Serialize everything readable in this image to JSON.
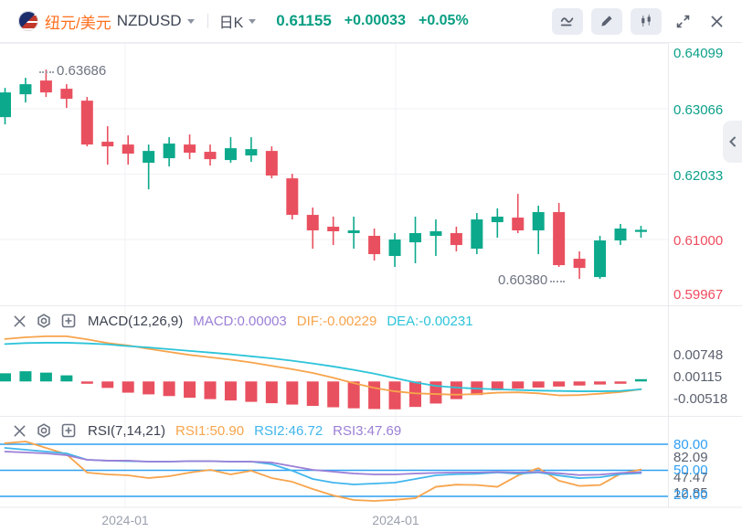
{
  "header": {
    "pair_cn": "纽元/美元",
    "symbol": "NZDUSD",
    "timeframe": "日K",
    "price": "0.61155",
    "change": "+0.00033",
    "change_pct": "+0.05%",
    "icon_names": [
      "line-chart",
      "draw",
      "candlestick",
      "fullscreen",
      "close"
    ]
  },
  "price_pane": {
    "axis": [
      "0.64099",
      "0.63066",
      "0.62033",
      "0.61000",
      "0.59967"
    ],
    "high_annotation": "0.63686",
    "low_annotation": "0.60380",
    "time_axis": [
      "2024-01",
      "2024-01"
    ],
    "collapse_icon": "chevron-left"
  },
  "macd_pane": {
    "tool_icons": [
      "close",
      "settings",
      "add"
    ],
    "title": "MACD(12,26,9)",
    "macd_label": "MACD:0.00003",
    "dif_label": "DIF:-0.00229",
    "dea_label": "DEA:-0.00231",
    "axis": [
      "0.00748",
      "0.00115",
      "-0.00518"
    ]
  },
  "rsi_pane": {
    "tool_icons": [
      "close",
      "settings",
      "add"
    ],
    "title": "RSI(7,14,21)",
    "rsi1_label": "RSI1:50.90",
    "rsi2_label": "RSI2:46.72",
    "rsi3_label": "RSI3:47.69",
    "guide_labels": [
      "80.00",
      "50.00",
      "20.00"
    ],
    "scale_labels": [
      "82.09",
      "47.47",
      "12.85"
    ]
  },
  "colors": {
    "up": "#0ca98c",
    "down": "#e9505f",
    "grid": "#f0f2f5",
    "divider": "#e8eaee",
    "indicator_orange": "#f7a44c",
    "indicator_cyan": "#2cc4d9",
    "indicator_purple": "#9b7fd6",
    "indicator_sky": "#41b6ec",
    "guide_blue": "#2f9ff2"
  },
  "chart_data": {
    "type": "candlestick",
    "title": "NZDUSD 日K",
    "price_axis_range": [
      0.59967,
      0.64099
    ],
    "candles_ohlc": [
      [
        0.62935,
        0.63397,
        0.6282,
        0.63325
      ],
      [
        0.63296,
        0.63556,
        0.63166,
        0.63455
      ],
      [
        0.63513,
        0.63686,
        0.63253,
        0.63325
      ],
      [
        0.63383,
        0.63455,
        0.6308,
        0.63224
      ],
      [
        0.63195,
        0.63253,
        0.62473,
        0.62502
      ],
      [
        0.62546,
        0.62791,
        0.62184,
        0.62473
      ],
      [
        0.62502,
        0.62647,
        0.62184,
        0.62358
      ],
      [
        0.62214,
        0.62502,
        0.61795,
        0.62401
      ],
      [
        0.62286,
        0.62618,
        0.62156,
        0.62517
      ],
      [
        0.62502,
        0.62661,
        0.62271,
        0.62373
      ],
      [
        0.62387,
        0.62502,
        0.6217,
        0.62271
      ],
      [
        0.62257,
        0.62618,
        0.62214,
        0.62444
      ],
      [
        0.62329,
        0.62618,
        0.62228,
        0.6243
      ],
      [
        0.62401,
        0.62473,
        0.61968,
        0.62012
      ],
      [
        0.61968,
        0.6204,
        0.61319,
        0.61391
      ],
      [
        0.61391,
        0.61507,
        0.60857,
        0.61146
      ],
      [
        0.61204,
        0.61363,
        0.60915,
        0.61132
      ],
      [
        0.61103,
        0.61363,
        0.60857,
        0.61146
      ],
      [
        0.6106,
        0.61175,
        0.6067,
        0.60771
      ],
      [
        0.60742,
        0.61103,
        0.60569,
        0.61002
      ],
      [
        0.60958,
        0.61363,
        0.60627,
        0.61103
      ],
      [
        0.6106,
        0.61319,
        0.60742,
        0.61132
      ],
      [
        0.61103,
        0.61204,
        0.60814,
        0.60915
      ],
      [
        0.60857,
        0.6142,
        0.60771,
        0.61319
      ],
      [
        0.61276,
        0.61493,
        0.61031,
        0.61363
      ],
      [
        0.61348,
        0.61723,
        0.61103,
        0.61146
      ],
      [
        0.61146,
        0.61536,
        0.60771,
        0.61435
      ],
      [
        0.61435,
        0.61579,
        0.60569,
        0.60597
      ],
      [
        0.60698,
        0.60814,
        0.6038,
        0.60553
      ],
      [
        0.60409,
        0.6106,
        0.6038,
        0.60987
      ],
      [
        0.60987,
        0.61248,
        0.60915,
        0.61175
      ],
      [
        0.61122,
        0.61218,
        0.61031,
        0.61155
      ]
    ],
    "macd": {
      "hist": [
        0.0024,
        0.003,
        0.0026,
        0.0018,
        -0.0003,
        -0.0019,
        -0.0033,
        -0.0038,
        -0.0043,
        -0.0048,
        -0.0052,
        -0.0056,
        -0.006,
        -0.0064,
        -0.0068,
        -0.0072,
        -0.0076,
        -0.0079,
        -0.0081,
        -0.0082,
        -0.0075,
        -0.0065,
        -0.0052,
        -0.004,
        -0.0026,
        -0.0021,
        -0.0018,
        -0.0015,
        -0.0012,
        -0.0009,
        -0.0006,
        3e-05
      ],
      "dif": [
        0.0125,
        0.013,
        0.0133,
        0.0133,
        0.0124,
        0.0113,
        0.0106,
        0.0096,
        0.0087,
        0.0078,
        0.0071,
        0.0064,
        0.0056,
        0.0046,
        0.0036,
        0.0025,
        0.0011,
        -0.0005,
        -0.0019,
        -0.0029,
        -0.0035,
        -0.0037,
        -0.0039,
        -0.0037,
        -0.0033,
        -0.0032,
        -0.0035,
        -0.0041,
        -0.004,
        -0.0036,
        -0.0031,
        -0.00229
      ],
      "dea": [
        0.011,
        0.0113,
        0.0114,
        0.0114,
        0.0112,
        0.0109,
        0.0104,
        0.01,
        0.0095,
        0.009,
        0.0085,
        0.008,
        0.0074,
        0.0068,
        0.0061,
        0.0053,
        0.0044,
        0.0034,
        0.0023,
        0.001,
        -0.0003,
        -0.0013,
        -0.0018,
        -0.0021,
        -0.0023,
        -0.0025,
        -0.0027,
        -0.0028,
        -0.0029,
        -0.0029,
        -0.0028,
        -0.00231
      ]
    },
    "rsi": {
      "guides": [
        80,
        50,
        20
      ],
      "rsi1": [
        81.1,
        83.2,
        75.8,
        68.4,
        47.4,
        45.3,
        44.2,
        41.1,
        43.2,
        47.4,
        50.5,
        45.3,
        49.5,
        41.1,
        36.8,
        28.4,
        21.1,
        15.8,
        14.7,
        16.0,
        17.9,
        31.0,
        33.5,
        33.0,
        31.0,
        44.0,
        52.5,
        38.0,
        32.0,
        33.0,
        46.0,
        50.9
      ],
      "rsi2": [
        75.8,
        73.7,
        71.6,
        69.5,
        62.1,
        61.1,
        60.5,
        60.0,
        60.0,
        60.5,
        60.5,
        60.0,
        60.0,
        57.0,
        49.5,
        40.0,
        35.8,
        33.7,
        34.7,
        35.8,
        40.0,
        44.2,
        45.5,
        46.0,
        47.5,
        46.0,
        47.5,
        44.0,
        41.0,
        42.0,
        45.5,
        46.72
      ],
      "rsi3": [
        71.6,
        70.5,
        69.5,
        67.4,
        62.1,
        61.1,
        61.1,
        60.0,
        60.0,
        60.5,
        60.5,
        60.0,
        60.0,
        59.0,
        54.7,
        50.5,
        48.4,
        46.3,
        45.3,
        45.3,
        46.3,
        47.0,
        47.5,
        47.5,
        48.0,
        47.5,
        48.0,
        46.5,
        44.5,
        45.0,
        47.0,
        47.69
      ]
    }
  }
}
